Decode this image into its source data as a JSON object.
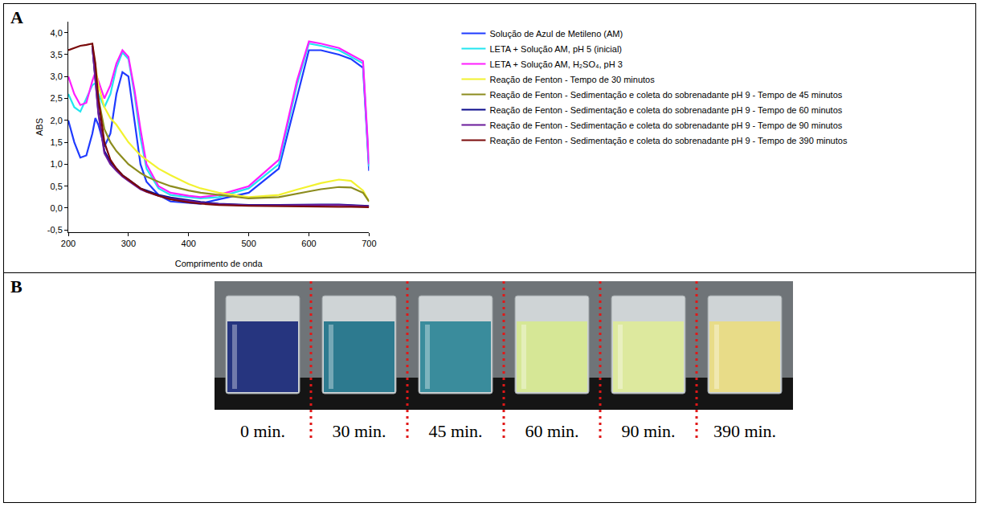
{
  "chart_data": {
    "type": "line",
    "annotations": [
      "A"
    ],
    "x_label": "Comprimento de onda",
    "y_label": "ABS",
    "x": [
      200,
      210,
      220,
      230,
      240,
      245,
      250,
      260,
      270,
      280,
      290,
      300,
      310,
      320,
      330,
      350,
      370,
      400,
      420,
      450,
      500,
      550,
      580,
      600,
      620,
      650,
      670,
      690,
      700
    ],
    "xlim": [
      200,
      700
    ],
    "xticks": [
      200,
      300,
      400,
      500,
      600,
      700
    ],
    "ylim": [
      -0.55,
      4.25
    ],
    "yticks": [
      {
        "value": -0.5,
        "label": "-0,5"
      },
      {
        "value": 0,
        "label": "0,0"
      },
      {
        "value": 0.5,
        "label": "0,5"
      },
      {
        "value": 1,
        "label": "1,0"
      },
      {
        "value": 1.5,
        "label": "1,5"
      },
      {
        "value": 2,
        "label": "2,0"
      },
      {
        "value": 2.5,
        "label": "2,5"
      },
      {
        "value": 3,
        "label": "3,0"
      },
      {
        "value": 3.5,
        "label": "3,5"
      },
      {
        "value": 4,
        "label": "4,0"
      }
    ],
    "grid": false,
    "legend": "right",
    "series": [
      {
        "name": "Solução de Azul de Metileno (AM)",
        "color": "#1f3bff",
        "values": [
          2.0,
          1.5,
          1.15,
          1.2,
          1.7,
          2.05,
          1.9,
          1.4,
          1.7,
          2.6,
          3.1,
          3.0,
          2.0,
          1.0,
          0.6,
          0.3,
          0.15,
          0.12,
          0.1,
          0.2,
          0.35,
          0.9,
          2.5,
          3.6,
          3.6,
          3.5,
          3.4,
          3.2,
          0.85
        ]
      },
      {
        "name": "LETA + Solução AM, pH 5 (inicial)",
        "color": "#22e5f0",
        "values": [
          2.6,
          2.3,
          2.2,
          2.5,
          2.8,
          2.85,
          2.6,
          2.3,
          2.6,
          3.2,
          3.55,
          3.4,
          2.6,
          1.6,
          0.9,
          0.45,
          0.3,
          0.25,
          0.22,
          0.25,
          0.45,
          1.0,
          2.8,
          3.75,
          3.7,
          3.6,
          3.45,
          3.3,
          0.95
        ]
      },
      {
        "name": "LETA + Solução AM, H₂SO₄, pH 3",
        "color": "#ff1eff",
        "values": [
          3.0,
          2.6,
          2.35,
          2.4,
          2.9,
          3.1,
          2.9,
          2.5,
          2.8,
          3.3,
          3.6,
          3.45,
          2.7,
          1.8,
          1.0,
          0.5,
          0.35,
          0.28,
          0.25,
          0.3,
          0.5,
          1.1,
          2.9,
          3.8,
          3.75,
          3.65,
          3.5,
          3.35,
          1.0
        ]
      },
      {
        "name": "Reação de Fenton - Tempo de 30 minutos",
        "color": "#f2f230",
        "values": [
          null,
          null,
          null,
          null,
          3.7,
          3.2,
          2.8,
          2.3,
          2.05,
          1.9,
          1.7,
          1.5,
          1.35,
          1.2,
          1.1,
          0.9,
          0.75,
          0.55,
          0.45,
          0.35,
          0.25,
          0.3,
          0.42,
          0.5,
          0.57,
          0.65,
          0.62,
          0.4,
          0.15
        ]
      },
      {
        "name": "Reação de Fenton - Sedimentação e coleta do sobrenadante pH 9 - Tempo de 45 minutos",
        "color": "#8c8c1e",
        "values": [
          null,
          null,
          null,
          null,
          3.7,
          3.0,
          2.5,
          1.8,
          1.5,
          1.3,
          1.15,
          1.0,
          0.9,
          0.8,
          0.72,
          0.6,
          0.5,
          0.4,
          0.35,
          0.3,
          0.22,
          0.25,
          0.32,
          0.38,
          0.43,
          0.48,
          0.47,
          0.35,
          0.15
        ]
      },
      {
        "name": "Reação de Fenton - Sedimentação e coleta do sobrenadante pH 9 - Tempo de 60 minutos",
        "color": "#0a0a8c",
        "values": [
          null,
          null,
          null,
          null,
          3.7,
          2.9,
          2.2,
          1.3,
          1.05,
          0.9,
          0.75,
          0.65,
          0.55,
          0.45,
          0.4,
          0.3,
          0.24,
          0.18,
          0.14,
          0.1,
          0.07,
          0.07,
          0.08,
          0.08,
          0.08,
          0.08,
          0.07,
          0.06,
          0.05
        ]
      },
      {
        "name": "Reação de Fenton - Sedimentação e coleta do sobrenadante pH 9 - Tempo de 90 minutos",
        "color": "#6a1a9a",
        "values": [
          null,
          null,
          null,
          null,
          3.7,
          2.85,
          2.15,
          1.25,
          1.0,
          0.85,
          0.72,
          0.62,
          0.52,
          0.43,
          0.37,
          0.28,
          0.22,
          0.16,
          0.12,
          0.09,
          0.06,
          0.06,
          0.07,
          0.07,
          0.07,
          0.07,
          0.06,
          0.05,
          0.04
        ]
      },
      {
        "name": "Reação de Fenton - Sedimentação e coleta do sobrenadante pH 9 - Tempo de 390 minutos",
        "color": "#7a0a0a",
        "values": [
          3.6,
          3.65,
          3.7,
          3.72,
          3.75,
          3.3,
          2.5,
          1.5,
          1.1,
          0.9,
          0.75,
          0.65,
          0.55,
          0.45,
          0.38,
          0.28,
          0.2,
          0.13,
          0.1,
          0.07,
          0.05,
          0.04,
          0.04,
          0.04,
          0.03,
          0.03,
          0.03,
          0.02,
          0.02
        ]
      }
    ]
  },
  "photo": {
    "label": "B",
    "samples": [
      {
        "label": "0 min.",
        "color": "#26357f"
      },
      {
        "label": "30 min.",
        "color": "#2d7a8f"
      },
      {
        "label": "45 min.",
        "color": "#3a8c9c"
      },
      {
        "label": "60 min.",
        "color": "#d6e796"
      },
      {
        "label": "90 min.",
        "color": "#dde99e"
      },
      {
        "label": "390 min.",
        "color": "#e8dc88"
      }
    ]
  }
}
